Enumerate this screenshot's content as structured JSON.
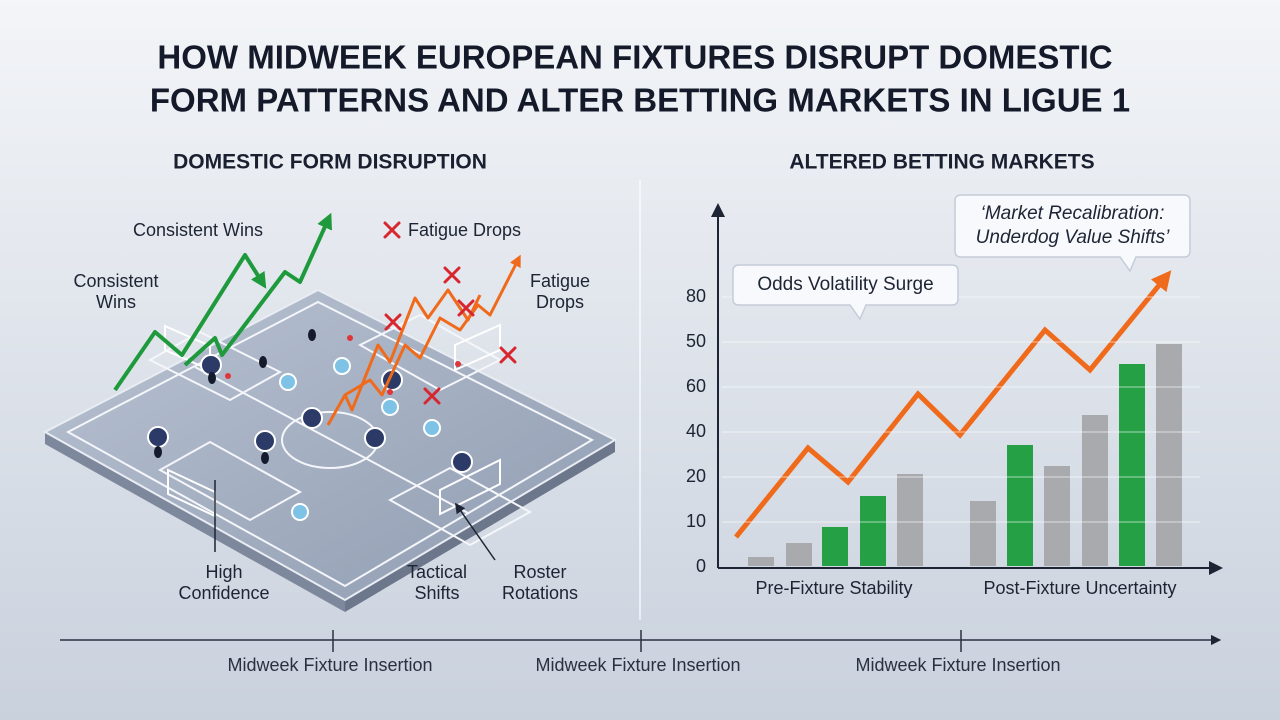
{
  "title": [
    "HOW MIDWEEK EUROPEAN FIXTURES DISRUPT DOMESTIC",
    "FORM PATTERNS AND ALTER BETTING MARKETS IN LIGUE 1"
  ],
  "left_panel": {
    "heading": "DOMESTIC FORM DISRUPTION",
    "labels": [
      {
        "lines": [
          "Consistent Wins"
        ]
      },
      {
        "lines": [
          "Consistent",
          "Wins"
        ]
      },
      {
        "lines": [
          "Fatigue Drops"
        ]
      },
      {
        "lines": [
          "Fatigue",
          "Drops"
        ]
      },
      {
        "lines": [
          "High",
          "Confidence"
        ]
      },
      {
        "lines": [
          "Tactical",
          "Shifts"
        ]
      },
      {
        "lines": [
          "Roster",
          "Rotations"
        ]
      }
    ]
  },
  "right_panel": {
    "heading": "ALTERED BETTING MARKETS",
    "callouts": [
      {
        "lines": [
          "Odds Volatility Surge"
        ]
      },
      {
        "lines": [
          "‘Market Recalibration:",
          "Underdog Value Shifts’"
        ]
      }
    ],
    "axis_labels": [
      "80",
      "50",
      "60",
      "40",
      "20",
      "10",
      "0"
    ],
    "group_labels": [
      "Pre-Fixture Stability",
      "Post-Fixture Uncertainty"
    ]
  },
  "timeline": [
    "Midweek Fixture Insertion",
    "Midweek Fixture Insertion",
    "Midweek Fixture Insertion"
  ]
}
